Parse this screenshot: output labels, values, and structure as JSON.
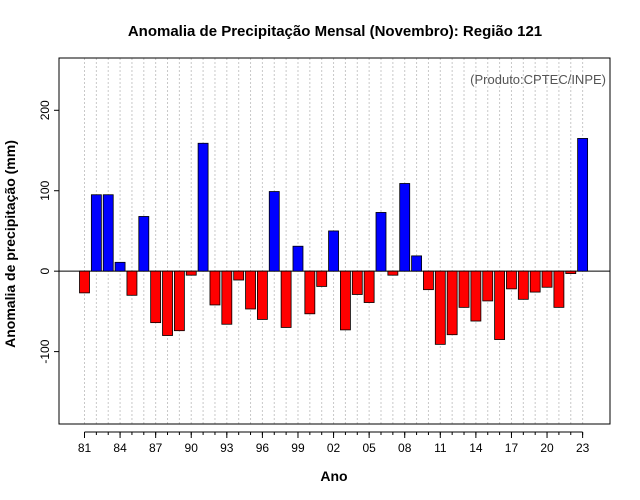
{
  "chart_data": {
    "type": "bar",
    "title": "Anomalia de Precipitação Mensal (Novembro): Região 121",
    "xlabel": "Ano",
    "ylabel": "Anomalia de precipitação (mm)",
    "annotation": "(Produto:CPTEC/INPE)",
    "ylim": [
      -190,
      265
    ],
    "yticks": [
      -100,
      0,
      100,
      200
    ],
    "x_tick_labels": [
      "81",
      "84",
      "87",
      "90",
      "93",
      "96",
      "99",
      "02",
      "05",
      "08",
      "11",
      "14",
      "17",
      "20",
      "23"
    ],
    "x_tick_years": [
      1981,
      1984,
      1987,
      1990,
      1993,
      1996,
      1999,
      2002,
      2005,
      2008,
      2011,
      2014,
      2017,
      2020,
      2023
    ],
    "grid": true,
    "colors": {
      "positive": "#0000ff",
      "negative": "#ff0000",
      "edge": "#000000",
      "grid": "#c8c8c8"
    },
    "years": [
      1981,
      1982,
      1983,
      1984,
      1985,
      1986,
      1987,
      1988,
      1989,
      1990,
      1991,
      1992,
      1993,
      1994,
      1995,
      1996,
      1997,
      1998,
      1999,
      2000,
      2001,
      2002,
      2003,
      2004,
      2005,
      2006,
      2007,
      2008,
      2009,
      2010,
      2011,
      2012,
      2013,
      2014,
      2015,
      2016,
      2017,
      2018,
      2019,
      2020,
      2021,
      2022,
      2023
    ],
    "values": [
      -27,
      95,
      95,
      11,
      -30,
      68,
      -64,
      -80,
      -74,
      -5,
      159,
      -42,
      -66,
      -11,
      -47,
      -60,
      99,
      -70,
      31,
      -53,
      -19,
      50,
      -73,
      -29,
      -39,
      73,
      -5,
      109,
      19,
      -23,
      -91,
      -79,
      -45,
      -62,
      -37,
      -85,
      -22,
      -35,
      -26,
      -20,
      -45,
      -3,
      165
    ]
  }
}
